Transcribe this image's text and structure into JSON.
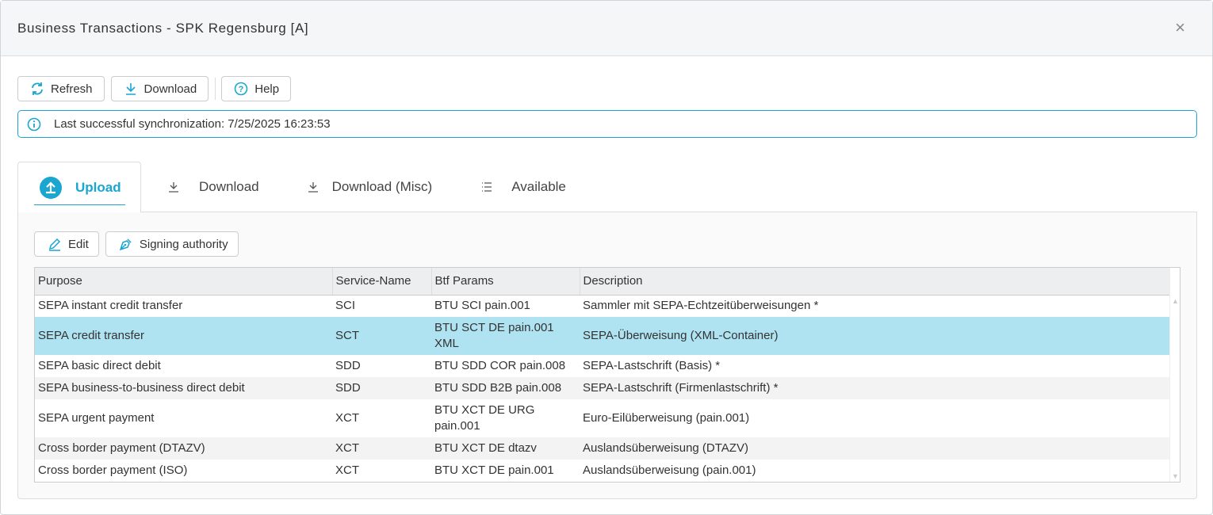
{
  "window": {
    "title": "Business Transactions - SPK Regensburg [A]",
    "close_icon": "×"
  },
  "toolbar": {
    "refresh": "Refresh",
    "download": "Download",
    "help": "Help"
  },
  "info": {
    "text": "Last successful synchronization: 7/25/2025 16:23:53"
  },
  "tabs": [
    {
      "label": "Upload",
      "active": true
    },
    {
      "label": "Download"
    },
    {
      "label": "Download (Misc)"
    },
    {
      "label": "Available"
    }
  ],
  "actions": {
    "edit": "Edit",
    "signing": "Signing authority"
  },
  "table": {
    "columns": [
      "Purpose",
      "Service-Name",
      "Btf Params",
      "Description"
    ],
    "rows": [
      {
        "purpose": "SEPA instant credit transfer",
        "service": "SCI",
        "btf": "BTU SCI pain.001",
        "desc": "Sammler mit SEPA-Echtzeitüberweisungen *"
      },
      {
        "purpose": "SEPA credit transfer",
        "service": "SCT",
        "btf": "BTU SCT DE pain.001 XML",
        "desc": "SEPA-Überweisung (XML-Container)",
        "selected": true
      },
      {
        "purpose": "SEPA basic direct debit",
        "service": "SDD",
        "btf": "BTU SDD COR pain.008",
        "desc": "SEPA-Lastschrift (Basis) *"
      },
      {
        "purpose": "SEPA business-to-business direct debit",
        "service": "SDD",
        "btf": "BTU SDD B2B pain.008",
        "desc": "SEPA-Lastschrift (Firmenlastschrift) *"
      },
      {
        "purpose": "SEPA urgent payment",
        "service": "XCT",
        "btf": "BTU XCT DE URG pain.001",
        "desc": "Euro-Eilüberweisung (pain.001)"
      },
      {
        "purpose": "Cross border payment (DTAZV)",
        "service": "XCT",
        "btf": "BTU XCT DE dtazv",
        "desc": "Auslandsüberweisung (DTAZV)"
      },
      {
        "purpose": "Cross border payment (ISO)",
        "service": "XCT",
        "btf": "BTU XCT DE pain.001",
        "desc": "Auslandsüberweisung (pain.001)"
      }
    ]
  },
  "colors": {
    "accent": "#1aa6d0",
    "selected_row": "#b0e3f1"
  }
}
